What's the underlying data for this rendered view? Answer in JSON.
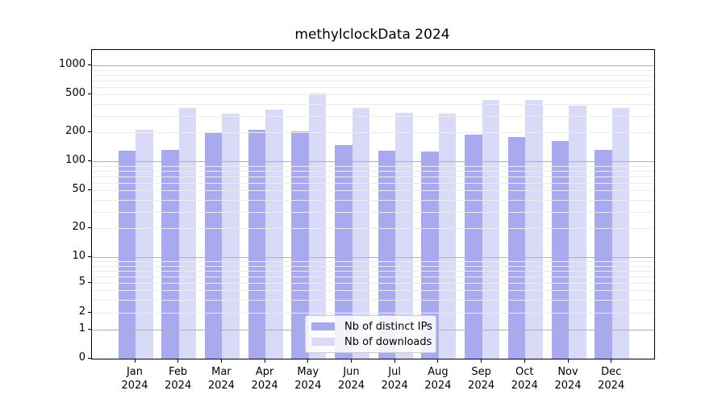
{
  "title": "methylclockData 2024",
  "legend": {
    "items": [
      {
        "label": "Nb of distinct IPs",
        "color": "#a9a9f0"
      },
      {
        "label": "Nb of downloads",
        "color": "#d9d9f8"
      }
    ]
  },
  "colors": {
    "bar_distinct_ips": "#a9a9f0",
    "bar_downloads": "#d9d9f8",
    "grid_major": "#b0b0b0",
    "grid_minor": "#ebebeb",
    "axis": "#000000"
  },
  "chart_data": {
    "type": "bar",
    "title": "methylclockData 2024",
    "categories": [
      "Jan",
      "Feb",
      "Mar",
      "Apr",
      "May",
      "Jun",
      "Jul",
      "Aug",
      "Sep",
      "Oct",
      "Nov",
      "Dec"
    ],
    "year": "2024",
    "series": [
      {
        "name": "Nb of distinct IPs",
        "color": "#a9a9f0",
        "values": [
          129,
          132,
          200,
          213,
          207,
          148,
          129,
          127,
          189,
          180,
          163,
          131
        ]
      },
      {
        "name": "Nb of downloads",
        "color": "#d9d9f8",
        "values": [
          212,
          362,
          318,
          344,
          512,
          362,
          324,
          314,
          436,
          440,
          379,
          360
        ]
      }
    ],
    "xlabel": "",
    "ylabel": "",
    "yscale": "symlog",
    "ylim": [
      0,
      1400
    ],
    "yticks": [
      0,
      1,
      2,
      5,
      10,
      20,
      50,
      100,
      200,
      500,
      1000
    ],
    "ytick_labels": [
      "0",
      "1",
      "2",
      "5",
      "10",
      "20",
      "50",
      "100",
      "200",
      "500",
      "1000"
    ],
    "grid": {
      "on": true,
      "major_values": [
        1,
        10,
        100,
        1000
      ],
      "minor_values": [
        2,
        3,
        4,
        5,
        6,
        7,
        8,
        9,
        20,
        30,
        40,
        50,
        60,
        70,
        80,
        90,
        200,
        300,
        400,
        500,
        600,
        700,
        800,
        900
      ]
    },
    "legend_position": "lower center"
  }
}
